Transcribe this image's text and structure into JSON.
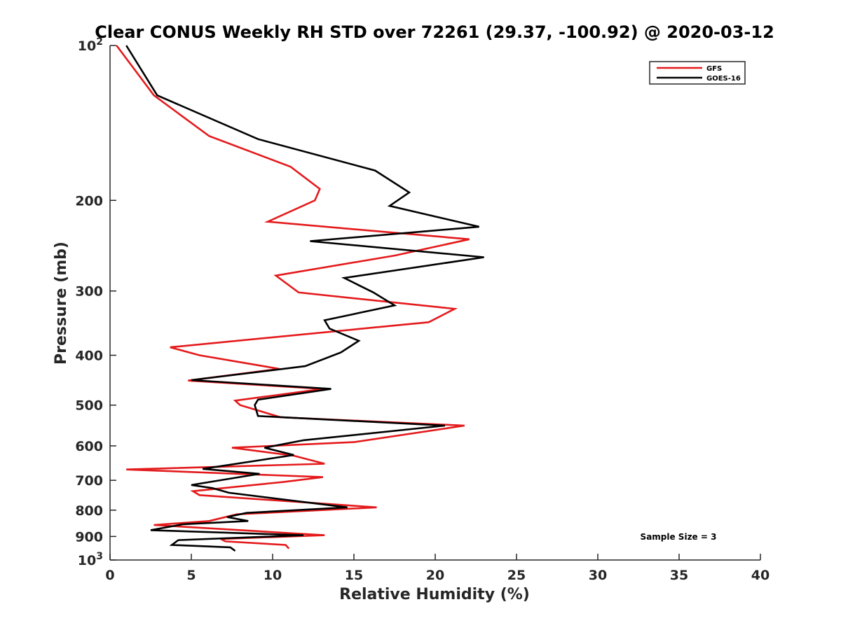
{
  "chart_data": {
    "type": "line",
    "title": "Clear CONUS Weekly RH STD over 72261 (29.37, -100.92) @ 2020-03-12",
    "xlabel": "Relative Humidity (%)",
    "ylabel": "Pressure (mb)",
    "xlim": [
      0,
      40
    ],
    "ylim": [
      100,
      1000
    ],
    "y_scale": "log",
    "y_reversed": true,
    "x_ticks": [
      "0",
      "5",
      "10",
      "15",
      "20",
      "25",
      "30",
      "35",
      "40"
    ],
    "y_ticks": [
      {
        "value": 100,
        "label": "10",
        "sup": "2"
      },
      {
        "value": 200,
        "label": "200",
        "sup": ""
      },
      {
        "value": 300,
        "label": "300",
        "sup": ""
      },
      {
        "value": 400,
        "label": "400",
        "sup": ""
      },
      {
        "value": 500,
        "label": "500",
        "sup": ""
      },
      {
        "value": 600,
        "label": "600",
        "sup": ""
      },
      {
        "value": 700,
        "label": "700",
        "sup": ""
      },
      {
        "value": 800,
        "label": "800",
        "sup": ""
      },
      {
        "value": 900,
        "label": "900",
        "sup": ""
      },
      {
        "value": 1000,
        "label": "10",
        "sup": "3"
      }
    ],
    "legend_position": "top-right",
    "grid": false,
    "series": [
      {
        "name": "GFS",
        "color": "#e41a1c",
        "points": [
          [
            0.4,
            100
          ],
          [
            2.7,
            125
          ],
          [
            6.1,
            150
          ],
          [
            11.1,
            172
          ],
          [
            12.9,
            190
          ],
          [
            12.6,
            200
          ],
          [
            9.7,
            220
          ],
          [
            22.1,
            238
          ],
          [
            17.5,
            256
          ],
          [
            10.2,
            280
          ],
          [
            11.6,
            302
          ],
          [
            21.2,
            325
          ],
          [
            19.6,
            345
          ],
          [
            3.7,
            386
          ],
          [
            5.5,
            400
          ],
          [
            10.4,
            425
          ],
          [
            4.8,
            448
          ],
          [
            13.1,
            465
          ],
          [
            7.7,
            490
          ],
          [
            8.0,
            500
          ],
          [
            10.5,
            528
          ],
          [
            21.8,
            548
          ],
          [
            15.0,
            590
          ],
          [
            7.5,
            605
          ],
          [
            11.3,
            627
          ],
          [
            13.2,
            650
          ],
          [
            1.0,
            667
          ],
          [
            13.1,
            690
          ],
          [
            10.7,
            705
          ],
          [
            5.1,
            735
          ],
          [
            5.5,
            748
          ],
          [
            16.4,
            790
          ],
          [
            7.8,
            815
          ],
          [
            6.1,
            840
          ],
          [
            2.7,
            855
          ],
          [
            13.2,
            895
          ],
          [
            6.8,
            910
          ],
          [
            7.1,
            920
          ],
          [
            10.8,
            935
          ],
          [
            11.0,
            950
          ]
        ]
      },
      {
        "name": "GOES-16",
        "color": "#000000",
        "points": [
          [
            1.0,
            100
          ],
          [
            2.9,
            125
          ],
          [
            9.1,
            152
          ],
          [
            16.3,
            175
          ],
          [
            18.4,
            193
          ],
          [
            17.2,
            205
          ],
          [
            22.7,
            225
          ],
          [
            12.3,
            240
          ],
          [
            23.0,
            258
          ],
          [
            14.4,
            283
          ],
          [
            16.2,
            302
          ],
          [
            17.5,
            320
          ],
          [
            13.2,
            342
          ],
          [
            13.5,
            355
          ],
          [
            15.3,
            375
          ],
          [
            14.2,
            395
          ],
          [
            12.0,
            420
          ],
          [
            5.0,
            447
          ],
          [
            13.6,
            465
          ],
          [
            9.1,
            488
          ],
          [
            8.9,
            500
          ],
          [
            9.1,
            525
          ],
          [
            20.6,
            548
          ],
          [
            11.9,
            585
          ],
          [
            9.5,
            605
          ],
          [
            11.3,
            625
          ],
          [
            9.2,
            640
          ],
          [
            5.7,
            665
          ],
          [
            9.2,
            680
          ],
          [
            5.0,
            715
          ],
          [
            6.3,
            725
          ],
          [
            7.3,
            740
          ],
          [
            14.6,
            790
          ],
          [
            8.4,
            810
          ],
          [
            7.2,
            825
          ],
          [
            8.5,
            840
          ],
          [
            4.5,
            852
          ],
          [
            2.5,
            875
          ],
          [
            11.9,
            895
          ],
          [
            4.2,
            915
          ],
          [
            3.8,
            935
          ],
          [
            7.4,
            945
          ],
          [
            7.7,
            960
          ]
        ]
      }
    ],
    "annotation": "Sample Size = 3"
  }
}
